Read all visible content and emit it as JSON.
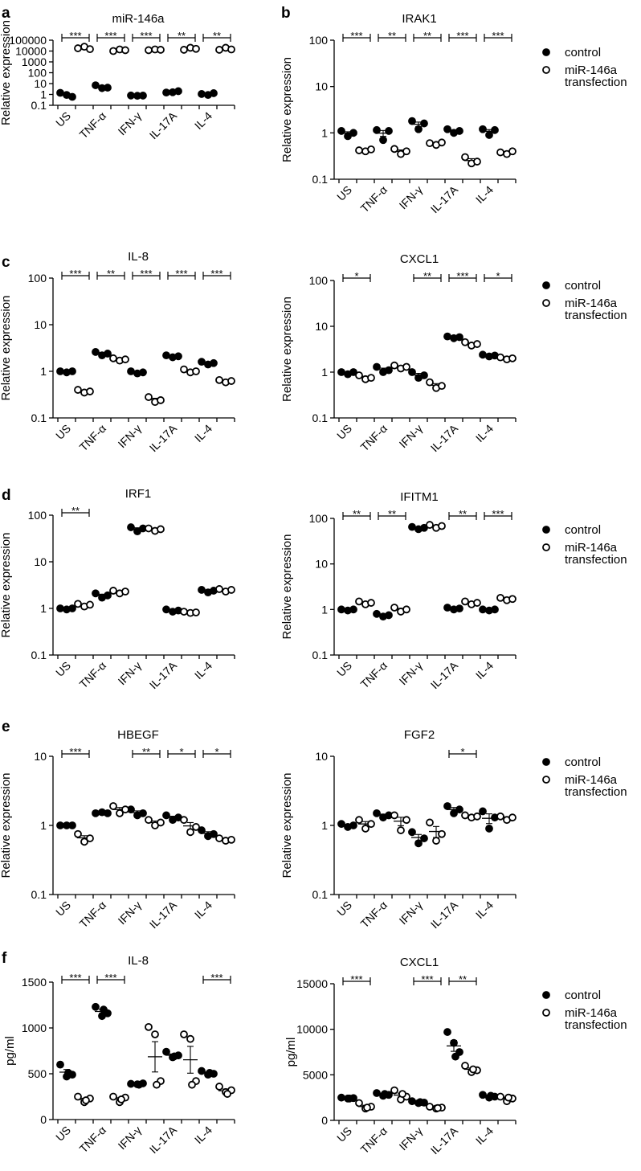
{
  "figure": {
    "group_labels": [
      "US",
      "TNF-α",
      "IFN-γ",
      "IL-17A",
      "IL-4"
    ],
    "legend": [
      {
        "name": "control",
        "marker": "filled-circle"
      },
      {
        "name": "miR-146a\ntransfection",
        "marker": "open-circle"
      }
    ],
    "marker_color": "#000000"
  },
  "chart_data": [
    {
      "panel": "a",
      "type": "scatter",
      "title": "miR-146a",
      "ylabel": "Relative expression",
      "scale": "log",
      "ylim": [
        0.1,
        100000
      ],
      "yticks": [
        0.1,
        1,
        10,
        100,
        1000,
        10000,
        100000
      ],
      "ytick_labels": [
        "0.1",
        "1",
        "10",
        "100",
        "1000",
        "10000",
        "100000"
      ],
      "xlabels": [
        "US",
        "TNF-α",
        "IFN-γ",
        "IL-17A",
        "IL-4"
      ],
      "series": [
        {
          "name": "control",
          "points": [
            [
              1.4,
              0.9,
              0.6
            ],
            [
              7,
              3.8,
              4.2
            ],
            [
              0.8,
              0.75,
              0.78
            ],
            [
              1.5,
              1.6,
              2
            ],
            [
              1.1,
              0.9,
              1.3
            ]
          ]
        },
        {
          "name": "miR-146a transfection",
          "points": [
            [
              18000,
              25000,
              15000
            ],
            [
              10000,
              14000,
              12000
            ],
            [
              12000,
              14000,
              13000
            ],
            [
              13000,
              20000,
              16000
            ],
            [
              13000,
              20000,
              14000
            ]
          ]
        }
      ],
      "significance": [
        "***",
        "***",
        "***",
        "**",
        "**"
      ]
    },
    {
      "panel": "b",
      "type": "scatter",
      "title": "IRAK1",
      "ylabel": "Relative expression",
      "scale": "log",
      "ylim": [
        0.1,
        100
      ],
      "yticks": [
        0.1,
        1,
        10,
        100
      ],
      "ytick_labels": [
        "0.1",
        "1",
        "10",
        "100"
      ],
      "xlabels": [
        "US",
        "TNF-α",
        "IFN-γ",
        "IL-17A",
        "IL-4"
      ],
      "series": [
        {
          "name": "control",
          "points": [
            [
              1.1,
              0.85,
              1.0
            ],
            [
              1.15,
              0.7,
              1.1
            ],
            [
              1.8,
              1.2,
              1.6
            ],
            [
              1.2,
              1.0,
              1.1
            ],
            [
              1.2,
              0.9,
              1.15
            ]
          ]
        },
        {
          "name": "miR-146a transfection",
          "points": [
            [
              0.42,
              0.4,
              0.44
            ],
            [
              0.45,
              0.35,
              0.4
            ],
            [
              0.6,
              0.55,
              0.62
            ],
            [
              0.3,
              0.22,
              0.24
            ],
            [
              0.38,
              0.35,
              0.4
            ]
          ]
        }
      ],
      "significance": [
        "***",
        "**",
        "**",
        "***",
        "***"
      ]
    },
    {
      "panel": "c",
      "type": "scatter",
      "title": "IL-8",
      "ylabel": "Relative expression",
      "scale": "log",
      "ylim": [
        0.1,
        100
      ],
      "yticks": [
        0.1,
        1,
        10,
        100
      ],
      "ytick_labels": [
        "0.1",
        "1",
        "10",
        "100"
      ],
      "xlabels": [
        "US",
        "TNF-α",
        "IFN-γ",
        "IL-17A",
        "IL-4"
      ],
      "series": [
        {
          "name": "control",
          "points": [
            [
              1.0,
              0.95,
              1.0
            ],
            [
              2.6,
              2.2,
              2.4
            ],
            [
              1.0,
              0.9,
              0.95
            ],
            [
              2.2,
              2.0,
              2.1
            ],
            [
              1.6,
              1.4,
              1.5
            ]
          ]
        },
        {
          "name": "miR-146a transfection",
          "points": [
            [
              0.4,
              0.35,
              0.37
            ],
            [
              1.9,
              1.7,
              1.8
            ],
            [
              0.28,
              0.22,
              0.24
            ],
            [
              1.1,
              0.95,
              1.0
            ],
            [
              0.65,
              0.58,
              0.62
            ]
          ]
        }
      ],
      "significance": [
        "***",
        "**",
        "***",
        "***",
        "***"
      ]
    },
    {
      "panel": "c2",
      "type": "scatter",
      "title": "CXCL1",
      "ylabel": "Relative expression",
      "scale": "log",
      "ylim": [
        0.1,
        100
      ],
      "yticks": [
        0.1,
        1,
        10,
        100
      ],
      "ytick_labels": [
        "0.1",
        "1",
        "10",
        "100"
      ],
      "xlabels": [
        "US",
        "TNF-α",
        "IFN-γ",
        "IL-17A",
        "IL-4"
      ],
      "series": [
        {
          "name": "control",
          "points": [
            [
              1.0,
              0.9,
              1.0
            ],
            [
              1.3,
              1.0,
              1.1
            ],
            [
              1.0,
              0.75,
              0.85
            ],
            [
              6.0,
              5.5,
              5.8
            ],
            [
              2.4,
              2.2,
              2.3
            ]
          ]
        },
        {
          "name": "miR-146a transfection",
          "points": [
            [
              0.85,
              0.7,
              0.75
            ],
            [
              1.4,
              1.2,
              1.3
            ],
            [
              0.6,
              0.45,
              0.5
            ],
            [
              4.5,
              3.8,
              4.1
            ],
            [
              2.1,
              1.9,
              2.0
            ]
          ]
        }
      ],
      "significance": [
        "*",
        "",
        "**",
        "***",
        "*"
      ]
    },
    {
      "panel": "d",
      "type": "scatter",
      "title": "IRF1",
      "ylabel": "Relative expression",
      "scale": "log",
      "ylim": [
        0.1,
        100
      ],
      "yticks": [
        0.1,
        1,
        10,
        100
      ],
      "ytick_labels": [
        "0.1",
        "1",
        "10",
        "100"
      ],
      "xlabels": [
        "US",
        "TNF-α",
        "IFN-γ",
        "IL-17A",
        "IL-4"
      ],
      "series": [
        {
          "name": "control",
          "points": [
            [
              1.0,
              0.95,
              1.0
            ],
            [
              2.1,
              1.7,
              1.9
            ],
            [
              55,
              45,
              52
            ],
            [
              0.95,
              0.85,
              0.9
            ],
            [
              2.5,
              2.2,
              2.4
            ]
          ]
        },
        {
          "name": "miR-146a transfection",
          "points": [
            [
              1.25,
              1.1,
              1.2
            ],
            [
              2.4,
              2.1,
              2.3
            ],
            [
              52,
              46,
              50
            ],
            [
              0.85,
              0.8,
              0.82
            ],
            [
              2.6,
              2.3,
              2.5
            ]
          ]
        }
      ],
      "significance": [
        "**",
        "",
        "",
        "",
        ""
      ]
    },
    {
      "panel": "d2",
      "type": "scatter",
      "title": "IFITM1",
      "ylabel": "Relative expression",
      "scale": "log",
      "ylim": [
        0.1,
        100
      ],
      "yticks": [
        0.1,
        1,
        10,
        100
      ],
      "ytick_labels": [
        "0.1",
        "1",
        "10",
        "100"
      ],
      "xlabels": [
        "US",
        "TNF-α",
        "IFN-γ",
        "IL-17A",
        "IL-4"
      ],
      "series": [
        {
          "name": "control",
          "points": [
            [
              1.0,
              0.95,
              1.0
            ],
            [
              0.8,
              0.7,
              0.75
            ],
            [
              65,
              58,
              62
            ],
            [
              1.1,
              1.0,
              1.05
            ],
            [
              1.0,
              0.95,
              1.0
            ]
          ]
        },
        {
          "name": "miR-146a transfection",
          "points": [
            [
              1.5,
              1.3,
              1.4
            ],
            [
              1.1,
              0.9,
              1.0
            ],
            [
              72,
              62,
              68
            ],
            [
              1.5,
              1.3,
              1.4
            ],
            [
              1.8,
              1.6,
              1.7
            ]
          ]
        }
      ],
      "significance": [
        "**",
        "**",
        "",
        "**",
        "***"
      ]
    },
    {
      "panel": "e",
      "type": "scatter",
      "title": "HBEGF",
      "ylabel": "Relative expression",
      "scale": "log",
      "ylim": [
        0.1,
        10
      ],
      "yticks": [
        0.1,
        1,
        10
      ],
      "ytick_labels": [
        "0.1",
        "1",
        "10"
      ],
      "xlabels": [
        "US",
        "TNF-α",
        "IFN-γ",
        "IL-17A",
        "IL-4"
      ],
      "series": [
        {
          "name": "control",
          "points": [
            [
              1.0,
              1.0,
              1.0
            ],
            [
              1.5,
              1.55,
              1.5
            ],
            [
              1.7,
              1.4,
              1.5
            ],
            [
              1.4,
              1.2,
              1.3
            ],
            [
              0.85,
              0.7,
              0.75
            ]
          ]
        },
        {
          "name": "miR-146a transfection",
          "points": [
            [
              0.75,
              0.58,
              0.65
            ],
            [
              1.9,
              1.5,
              1.7
            ],
            [
              1.2,
              1.0,
              1.1
            ],
            [
              1.2,
              0.8,
              0.95
            ],
            [
              0.65,
              0.6,
              0.62
            ]
          ]
        }
      ],
      "significance": [
        "***",
        "",
        "**",
        "*",
        "*"
      ]
    },
    {
      "panel": "e2",
      "type": "scatter",
      "title": "FGF2",
      "ylabel": "Relative expression",
      "scale": "log",
      "ylim": [
        0.1,
        10
      ],
      "yticks": [
        0.1,
        1,
        10
      ],
      "ytick_labels": [
        "0.1",
        "1",
        "10"
      ],
      "xlabels": [
        "US",
        "TNF-α",
        "IFN-γ",
        "IL-17A",
        "IL-4"
      ],
      "series": [
        {
          "name": "control",
          "points": [
            [
              1.05,
              0.95,
              1.0
            ],
            [
              1.5,
              1.3,
              1.4
            ],
            [
              0.8,
              0.55,
              0.65
            ],
            [
              1.9,
              1.5,
              1.7
            ],
            [
              1.6,
              0.9,
              1.3
            ]
          ]
        },
        {
          "name": "miR-146a transfection",
          "points": [
            [
              1.2,
              0.9,
              1.05
            ],
            [
              1.4,
              0.85,
              1.2
            ],
            [
              1.1,
              0.6,
              0.75
            ],
            [
              1.4,
              1.3,
              1.35
            ],
            [
              1.35,
              1.2,
              1.3
            ]
          ]
        }
      ],
      "significance": [
        "",
        "",
        "",
        "*",
        ""
      ]
    },
    {
      "panel": "f",
      "type": "scatter",
      "title": "IL-8",
      "ylabel": "pg/ml",
      "scale": "linear",
      "ylim": [
        0,
        1500
      ],
      "yticks": [
        0,
        500,
        1000,
        1500
      ],
      "ytick_labels": [
        "0",
        "500",
        "1000",
        "1500"
      ],
      "xlabels": [
        "US",
        "TNF-α",
        "IFN-γ",
        "IL-17A",
        "IL-4"
      ],
      "series": [
        {
          "name": "control",
          "points": [
            [
              600,
              470,
              490,
              510
            ],
            [
              1230,
              1130,
              1160,
              1200
            ],
            [
              390,
              385,
              395,
              380
            ],
            [
              740,
              680,
              700,
              690
            ],
            [
              530,
              490,
              500,
              510
            ]
          ]
        },
        {
          "name": "miR-146a transfection",
          "points": [
            [
              250,
              190,
              230,
              210
            ],
            [
              250,
              190,
              240,
              220
            ],
            [
              1010,
              930,
              420,
              380
            ],
            [
              930,
              880,
              420,
              380
            ],
            [
              360,
              300,
              320,
              280
            ]
          ]
        }
      ],
      "significance": [
        "***",
        "***",
        "",
        "",
        "***"
      ]
    },
    {
      "panel": "f2",
      "type": "scatter",
      "title": "CXCL1",
      "ylabel": "pg/ml",
      "scale": "linear",
      "ylim": [
        0,
        15000
      ],
      "yticks": [
        0,
        5000,
        10000,
        15000
      ],
      "ytick_labels": [
        "0",
        "5000",
        "10000",
        "15000"
      ],
      "xlabels": [
        "US",
        "TNF-α",
        "IFN-γ",
        "IL-17A",
        "IL-4"
      ],
      "series": [
        {
          "name": "control",
          "points": [
            [
              2500,
              2400,
              2450,
              2400
            ],
            [
              3000,
              2700,
              2800,
              2900
            ],
            [
              2100,
              1900,
              1950,
              2000
            ],
            [
              9700,
              8500,
              7500,
              7000
            ],
            [
              2800,
              2500,
              2600,
              2700
            ]
          ]
        },
        {
          "name": "miR-146a transfection",
          "points": [
            [
              1900,
              1300,
              1500,
              1400
            ],
            [
              3300,
              2300,
              2600,
              2900
            ],
            [
              1500,
              1300,
              1400,
              1350
            ],
            [
              6000,
              5300,
              5500,
              5600
            ],
            [
              2600,
              2100,
              2400,
              2500
            ]
          ]
        }
      ],
      "significance": [
        "***",
        "",
        "***",
        "**",
        ""
      ]
    }
  ],
  "panel_letters": [
    "a",
    "b",
    "c",
    "d",
    "e",
    "f"
  ]
}
